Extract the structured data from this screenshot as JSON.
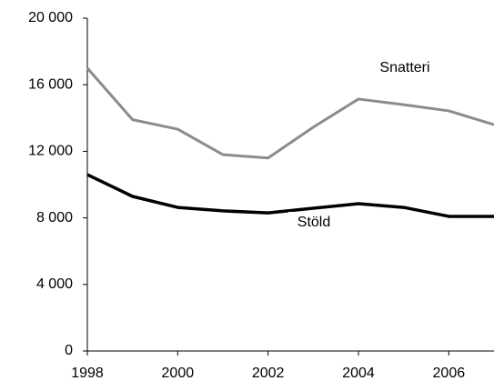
{
  "chart_data": {
    "type": "line",
    "x": [
      1998,
      1999,
      2000,
      2001,
      2002,
      2003,
      2004,
      2005,
      2006,
      2007
    ],
    "series": [
      {
        "name": "Snatteri",
        "color": "#8c8c8c",
        "values": [
          17000,
          13900,
          13330,
          11800,
          11600,
          13450,
          15140,
          14800,
          14430,
          13600
        ]
      },
      {
        "name": "Stöld",
        "color": "#000000",
        "values": [
          10600,
          9290,
          8630,
          8420,
          8300,
          8580,
          8850,
          8630,
          8090,
          8090
        ]
      }
    ],
    "xlim": [
      1998,
      2007
    ],
    "xticks": [
      1998,
      2000,
      2002,
      2004,
      2006
    ],
    "ylim": [
      0,
      20000
    ],
    "yticks": [
      {
        "value": 0,
        "label": "0"
      },
      {
        "value": 4000,
        "label": "4 000"
      },
      {
        "value": 8000,
        "label": "8 000"
      },
      {
        "value": 12000,
        "label": "12 000"
      },
      {
        "value": 16000,
        "label": "16 000"
      },
      {
        "value": 20000,
        "label": "20 000"
      }
    ]
  }
}
